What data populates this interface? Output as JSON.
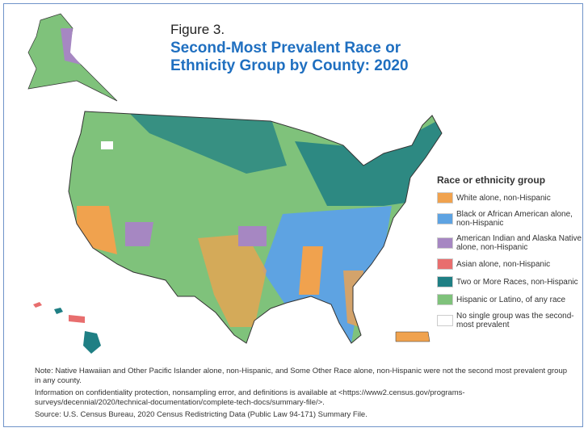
{
  "figure_label": "Figure 3.",
  "title": "Second-Most Prevalent Race or Ethnicity Group by County: 2020",
  "legend": {
    "title": "Race or ethnicity group",
    "items": [
      {
        "label": "White alone, non-Hispanic",
        "color": "#f0a24e"
      },
      {
        "label": "Black or African American alone, non-Hispanic",
        "color": "#5ea3e2"
      },
      {
        "label": "American Indian and Alaska Native alone, non-Hispanic",
        "color": "#a687c2"
      },
      {
        "label": "Asian alone, non-Hispanic",
        "color": "#e86e6e"
      },
      {
        "label": "Two or More Races, non-Hispanic",
        "color": "#1f7f84"
      },
      {
        "label": "Hispanic or Latino, of any race",
        "color": "#7fc27b"
      },
      {
        "label": "No single group was the second-most prevalent",
        "color": "#ffffff"
      }
    ]
  },
  "notes": {
    "note": "Note: Native Hawaiian and Other Pacific Islander alone, non-Hispanic, and Some Other Race alone, non-Hispanic were not the second most prevalent group in any county.",
    "info": "Information on confidentiality protection, nonsampling error, and definitions is available at <https://www2.census.gov/programs-surveys/decennial/2020/technical-documentation/complete-tech-docs/summary-file/>.",
    "source": "Source: U.S. Census Bureau, 2020 Census Redistricting Data (Public Law 94-171) Summary File."
  }
}
